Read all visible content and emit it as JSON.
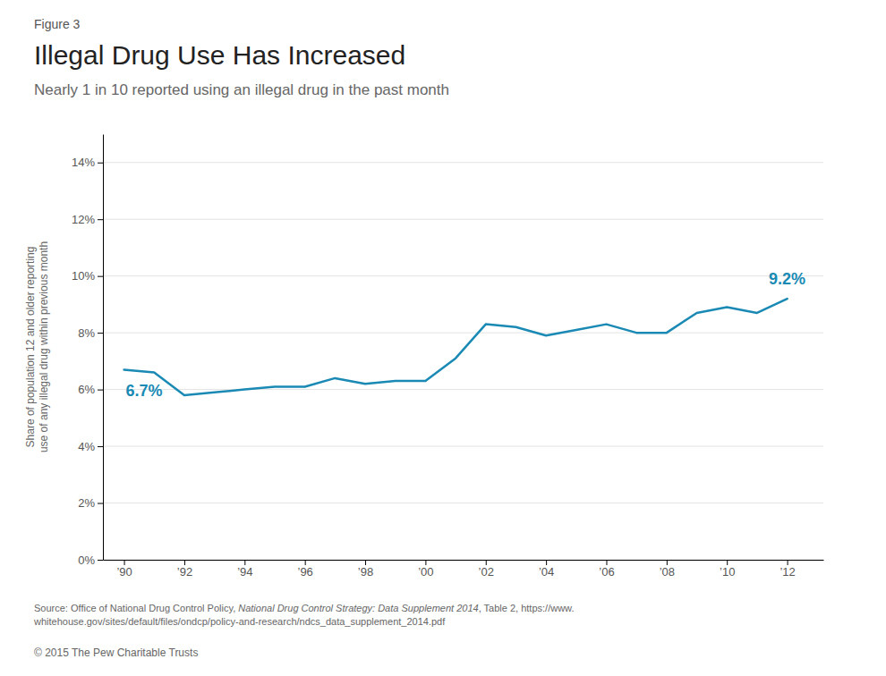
{
  "chart_data": {
    "type": "line",
    "figure_label": "Figure 3",
    "title": "Illegal Drug Use Has Increased",
    "subtitle": "Nearly 1 in 10 reported using an illegal drug in the past month",
    "y_label": "Share of population 12 and older reporting\nuse of any illegal drug within previous month",
    "x": [
      1990,
      1991,
      1992,
      1993,
      1994,
      1995,
      1996,
      1997,
      1998,
      1999,
      2000,
      2001,
      2002,
      2003,
      2004,
      2005,
      2006,
      2007,
      2008,
      2009,
      2010,
      2011,
      2012
    ],
    "values": [
      6.7,
      6.6,
      5.8,
      5.9,
      6.0,
      6.1,
      6.1,
      6.4,
      6.2,
      6.3,
      6.3,
      7.1,
      8.3,
      8.2,
      7.9,
      8.1,
      8.3,
      8.0,
      8.0,
      8.7,
      8.9,
      8.7,
      9.2
    ],
    "color": "#1a8ab5",
    "xlim": [
      1989.3,
      2013.2
    ],
    "ylim": [
      0,
      15
    ],
    "xticks": [
      {
        "value": 1990,
        "label": "’90"
      },
      {
        "value": 1992,
        "label": "’92"
      },
      {
        "value": 1994,
        "label": "’94"
      },
      {
        "value": 1996,
        "label": "’96"
      },
      {
        "value": 1998,
        "label": "’98"
      },
      {
        "value": 2000,
        "label": "’00"
      },
      {
        "value": 2002,
        "label": "’02"
      },
      {
        "value": 2004,
        "label": "’04"
      },
      {
        "value": 2006,
        "label": "’06"
      },
      {
        "value": 2008,
        "label": "’08"
      },
      {
        "value": 2010,
        "label": "’10"
      },
      {
        "value": 2012,
        "label": "’12"
      }
    ],
    "yticks": [
      {
        "value": 0,
        "label": "0%"
      },
      {
        "value": 2,
        "label": "2%"
      },
      {
        "value": 4,
        "label": "4%"
      },
      {
        "value": 6,
        "label": "6%"
      },
      {
        "value": 8,
        "label": "8%"
      },
      {
        "value": 10,
        "label": "10%"
      },
      {
        "value": 12,
        "label": "12%"
      },
      {
        "value": 14,
        "label": "14%"
      }
    ],
    "grid": true,
    "annotations": [
      "6.7%",
      "9.2%"
    ],
    "source": [
      "Source: Office of National Drug Control Policy, ",
      "National Drug Control Strategy: Data Supplement 2014",
      ", Table 2, https://www.\nwhitehouse.gov/sites/default/files/ondcp/policy-and-research/ndcs_data_supplement_2014.pdf"
    ],
    "copyright": "© 2015 The Pew Charitable Trusts"
  }
}
